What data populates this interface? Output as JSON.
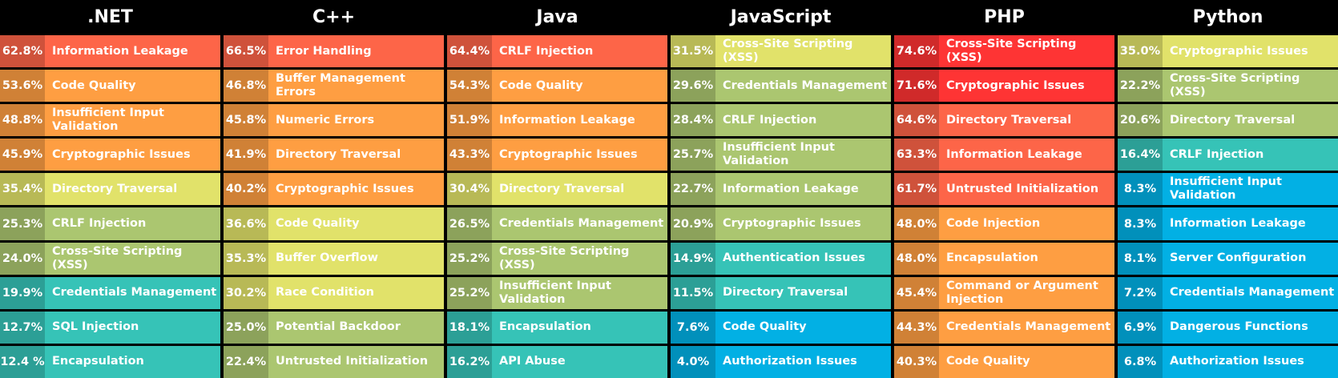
{
  "columns": [
    {
      "title": ".NET",
      "rows": [
        {
          "percent": "62.8%",
          "label": "Information Leakage",
          "color": "#fd6548"
        },
        {
          "percent": "53.6%",
          "label": "Code Quality",
          "color": "#fe9e42"
        },
        {
          "percent": "48.8%",
          "label": "Insufficient Input Validation",
          "color": "#fe9e42"
        },
        {
          "percent": "45.9%",
          "label": "Cryptographic Issues",
          "color": "#fe9e42"
        },
        {
          "percent": "35.4%",
          "label": "Directory Traversal",
          "color": "#e1e26a"
        },
        {
          "percent": "25.3%",
          "label": "CRLF Injection",
          "color": "#abc670"
        },
        {
          "percent": "24.0%",
          "label": "Cross-Site Scripting (XSS)",
          "color": "#abc670"
        },
        {
          "percent": "19.9%",
          "label": "Credentials Management",
          "color": "#36c3b7"
        },
        {
          "percent": "12.7%",
          "label": "SQL Injection",
          "color": "#36c3b7"
        },
        {
          "percent": "12.4 %",
          "label": "Encapsulation",
          "color": "#36c3b7"
        }
      ]
    },
    {
      "title": "C++",
      "rows": [
        {
          "percent": "66.5%",
          "label": "Error Handling",
          "color": "#fd6548"
        },
        {
          "percent": "46.8%",
          "label": "Buffer Management Errors",
          "color": "#fe9e42"
        },
        {
          "percent": "45.8%",
          "label": "Numeric Errors",
          "color": "#fe9e42"
        },
        {
          "percent": "41.9%",
          "label": "Directory Traversal",
          "color": "#fe9e42"
        },
        {
          "percent": "40.2%",
          "label": "Cryptographic Issues",
          "color": "#fe9e42"
        },
        {
          "percent": "36.6%",
          "label": "Code Quality",
          "color": "#e1e26a"
        },
        {
          "percent": "35.3%",
          "label": "Buffer Overflow",
          "color": "#e1e26a"
        },
        {
          "percent": "30.2%",
          "label": "Race Condition",
          "color": "#e1e26a"
        },
        {
          "percent": "25.0%",
          "label": "Potential Backdoor",
          "color": "#abc670"
        },
        {
          "percent": "22.4%",
          "label": "Untrusted Initialization",
          "color": "#abc670"
        }
      ]
    },
    {
      "title": "Java",
      "rows": [
        {
          "percent": "64.4%",
          "label": "CRLF Injection",
          "color": "#fd6548"
        },
        {
          "percent": "54.3%",
          "label": "Code Quality",
          "color": "#fe9e42"
        },
        {
          "percent": "51.9%",
          "label": "Information Leakage",
          "color": "#fe9e42"
        },
        {
          "percent": "43.3%",
          "label": "Cryptographic Issues",
          "color": "#fe9e42"
        },
        {
          "percent": "30.4%",
          "label": "Directory Traversal",
          "color": "#e1e26a"
        },
        {
          "percent": "26.5%",
          "label": "Credentials Management",
          "color": "#abc670"
        },
        {
          "percent": "25.2%",
          "label": "Cross-Site Scripting (XSS)",
          "color": "#abc670"
        },
        {
          "percent": "25.2%",
          "label": "Insufficient Input Validation",
          "color": "#abc670"
        },
        {
          "percent": "18.1%",
          "label": "Encapsulation",
          "color": "#36c3b7"
        },
        {
          "percent": "16.2%",
          "label": "API Abuse",
          "color": "#36c3b7"
        }
      ]
    },
    {
      "title": "JavaScript",
      "rows": [
        {
          "percent": "31.5%",
          "label": "Cross-Site Scripting (XSS)",
          "color": "#e1e26a"
        },
        {
          "percent": "29.6%",
          "label": "Credentials Management",
          "color": "#abc670"
        },
        {
          "percent": "28.4%",
          "label": "CRLF Injection",
          "color": "#abc670"
        },
        {
          "percent": "25.7%",
          "label": "Insufficient Input Validation",
          "color": "#abc670"
        },
        {
          "percent": "22.7%",
          "label": "Information Leakage",
          "color": "#abc670"
        },
        {
          "percent": "20.9%",
          "label": "Cryptographic Issues",
          "color": "#abc670"
        },
        {
          "percent": "14.9%",
          "label": "Authentication Issues",
          "color": "#36c3b7"
        },
        {
          "percent": "11.5%",
          "label": "Directory Traversal",
          "color": "#36c3b7"
        },
        {
          "percent": "7.6%",
          "label": "Code Quality",
          "color": "#02b0e4"
        },
        {
          "percent": "4.0%",
          "label": "Authorization Issues",
          "color": "#02b0e4"
        }
      ]
    },
    {
      "title": "PHP",
      "rows": [
        {
          "percent": "74.6%",
          "label": "Cross-Site Scripting (XSS)",
          "color": "#fe3434"
        },
        {
          "percent": "71.6%",
          "label": "Cryptographic Issues",
          "color": "#fe3434"
        },
        {
          "percent": "64.6%",
          "label": "Directory Traversal",
          "color": "#fd6548"
        },
        {
          "percent": "63.3%",
          "label": "Information Leakage",
          "color": "#fd6548"
        },
        {
          "percent": "61.7%",
          "label": "Untrusted Initialization",
          "color": "#fd6548"
        },
        {
          "percent": "48.0%",
          "label": "Code Injection",
          "color": "#fe9e42"
        },
        {
          "percent": "48.0%",
          "label": "Encapsulation",
          "color": "#fe9e42"
        },
        {
          "percent": "45.4%",
          "label": "Command or Argument Injection",
          "color": "#fe9e42"
        },
        {
          "percent": "44.3%",
          "label": "Credentials Management",
          "color": "#fe9e42"
        },
        {
          "percent": "40.3%",
          "label": "Code Quality",
          "color": "#fe9e42"
        }
      ]
    },
    {
      "title": "Python",
      "rows": [
        {
          "percent": "35.0%",
          "label": "Cryptographic Issues",
          "color": "#e1e26a"
        },
        {
          "percent": "22.2%",
          "label": "Cross-Site Scripting (XSS)",
          "color": "#abc670"
        },
        {
          "percent": "20.6%",
          "label": "Directory Traversal",
          "color": "#abc670"
        },
        {
          "percent": "16.4%",
          "label": "CRLF Injection",
          "color": "#36c3b7"
        },
        {
          "percent": "8.3%",
          "label": "Insufficient Input Validation",
          "color": "#02b0e4"
        },
        {
          "percent": "8.3%",
          "label": "Information Leakage",
          "color": "#02b0e4"
        },
        {
          "percent": "8.1%",
          "label": "Server Configuration",
          "color": "#02b0e4"
        },
        {
          "percent": "7.2%",
          "label": "Credentials Management",
          "color": "#02b0e4"
        },
        {
          "percent": "6.9%",
          "label": "Dangerous Functions",
          "color": "#02b0e4"
        },
        {
          "percent": "6.8%",
          "label": "Authorization Issues",
          "color": "#02b0e4"
        }
      ]
    }
  ]
}
